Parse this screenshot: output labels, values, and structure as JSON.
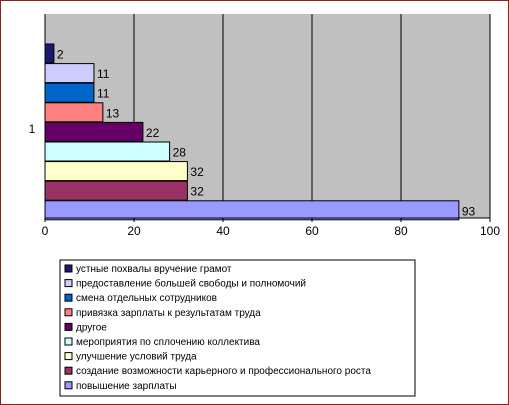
{
  "chart_data": {
    "type": "bar",
    "orientation": "horizontal",
    "category_label": "1",
    "xlim": [
      0,
      100
    ],
    "xticks": [
      "0",
      "20",
      "40",
      "60",
      "80",
      "100"
    ],
    "plot_background": "#c0c0c0",
    "grid": true,
    "legend_position": "bottom",
    "bar_order": "first series at top",
    "series": [
      {
        "name": "устные похвалы вручение грамот",
        "value": 2,
        "color": "#1a1a6e"
      },
      {
        "name": "предоставление большей свободы и полномочий",
        "value": 11,
        "color": "#ccccff"
      },
      {
        "name": "смена отдельных сотрудников",
        "value": 11,
        "color": "#0066cc"
      },
      {
        "name": "привязка зарплаты к результатам труда",
        "value": 13,
        "color": "#ff8080"
      },
      {
        "name": "другое",
        "value": 22,
        "color": "#660066"
      },
      {
        "name": "мероприятия по сплочению коллектива",
        "value": 28,
        "color": "#ccffff"
      },
      {
        "name": "улучшение условий труда",
        "value": 32,
        "color": "#ffffcc"
      },
      {
        "name": "создание возможности карьерного и профессионального роста",
        "value": 32,
        "color": "#993366"
      },
      {
        "name": "повышение зарплаты",
        "value": 93,
        "color": "#9999ff"
      }
    ]
  }
}
